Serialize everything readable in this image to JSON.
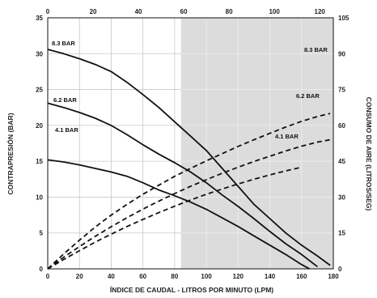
{
  "chart_data": {
    "type": "line",
    "xlabel": "ÍNDICE DE CAUDAL - LITROS POR MINUTO (LPM)",
    "ylabel": "CONTRAPRESIÓN (BAR)",
    "y2label": "CONSUMO DE AIRE (LITROS/SEG)",
    "xlim": [
      0,
      180
    ],
    "ylim": [
      0,
      35
    ],
    "x2lim": [
      0,
      126
    ],
    "y2lim": [
      0,
      105
    ],
    "x_ticks": [
      "0",
      "20",
      "40",
      "60",
      "80",
      "100",
      "120",
      "140",
      "160",
      "180"
    ],
    "y_ticks": [
      "0",
      "5",
      "10",
      "15",
      "20",
      "25",
      "30",
      "35"
    ],
    "x2_ticks": [
      "0",
      "20",
      "40",
      "60",
      "80",
      "100",
      "120"
    ],
    "y2_ticks": [
      "0",
      "15",
      "30",
      "45",
      "60",
      "75",
      "90",
      "105"
    ],
    "grid": true,
    "shaded_region_x": [
      84,
      180
    ],
    "series": [
      {
        "name": "8.3 BAR",
        "style": "solid",
        "points": [
          [
            0,
            30.6
          ],
          [
            10,
            30.0
          ],
          [
            20,
            29.3
          ],
          [
            30,
            28.5
          ],
          [
            40,
            27.5
          ],
          [
            50,
            26.0
          ],
          [
            60,
            24.3
          ],
          [
            70,
            22.5
          ],
          [
            80,
            20.5
          ],
          [
            90,
            18.5
          ],
          [
            100,
            16.5
          ],
          [
            110,
            14.0
          ],
          [
            120,
            11.5
          ],
          [
            130,
            9.0
          ],
          [
            140,
            7.0
          ],
          [
            150,
            5.0
          ],
          [
            160,
            3.3
          ],
          [
            170,
            1.8
          ],
          [
            178,
            0.5
          ]
        ]
      },
      {
        "name": "6.2 BAR",
        "style": "solid",
        "points": [
          [
            0,
            23.1
          ],
          [
            10,
            22.5
          ],
          [
            20,
            21.8
          ],
          [
            30,
            21.0
          ],
          [
            40,
            20.0
          ],
          [
            50,
            18.7
          ],
          [
            60,
            17.3
          ],
          [
            70,
            16.0
          ],
          [
            80,
            14.8
          ],
          [
            90,
            13.5
          ],
          [
            100,
            12.0
          ],
          [
            110,
            10.3
          ],
          [
            120,
            8.7
          ],
          [
            130,
            7.0
          ],
          [
            140,
            5.2
          ],
          [
            150,
            3.5
          ],
          [
            160,
            2.0
          ],
          [
            170,
            0.3
          ]
        ]
      },
      {
        "name": "4.1 BAR",
        "style": "solid",
        "points": [
          [
            0,
            15.2
          ],
          [
            10,
            14.9
          ],
          [
            20,
            14.5
          ],
          [
            30,
            14.0
          ],
          [
            40,
            13.5
          ],
          [
            50,
            12.9
          ],
          [
            60,
            12.0
          ],
          [
            70,
            11.0
          ],
          [
            80,
            10.2
          ],
          [
            90,
            9.3
          ],
          [
            100,
            8.3
          ],
          [
            110,
            7.1
          ],
          [
            120,
            5.9
          ],
          [
            130,
            4.6
          ],
          [
            140,
            3.3
          ],
          [
            150,
            2.0
          ],
          [
            160,
            0.6
          ],
          [
            165,
            0
          ]
        ]
      },
      {
        "name": "8.3 BAR",
        "style": "dashed",
        "points": [
          [
            0,
            0
          ],
          [
            10,
            6.2
          ],
          [
            20,
            12.0
          ],
          [
            30,
            17.5
          ],
          [
            40,
            22.5
          ],
          [
            50,
            27.0
          ],
          [
            60,
            31.2
          ],
          [
            70,
            35.0
          ],
          [
            80,
            38.7
          ],
          [
            90,
            42.0
          ],
          [
            100,
            45.2
          ],
          [
            110,
            48.2
          ],
          [
            120,
            51.2
          ],
          [
            130,
            54.0
          ],
          [
            140,
            56.7
          ],
          [
            150,
            59.3
          ],
          [
            160,
            61.7
          ],
          [
            170,
            63.7
          ],
          [
            178,
            65.0
          ]
        ]
      },
      {
        "name": "6.2 BAR",
        "style": "dashed",
        "points": [
          [
            0,
            0
          ],
          [
            10,
            4.8
          ],
          [
            20,
            9.3
          ],
          [
            30,
            13.6
          ],
          [
            40,
            17.6
          ],
          [
            50,
            21.4
          ],
          [
            60,
            25.0
          ],
          [
            70,
            28.3
          ],
          [
            80,
            31.5
          ],
          [
            90,
            34.5
          ],
          [
            100,
            37.3
          ],
          [
            110,
            40.0
          ],
          [
            120,
            42.5
          ],
          [
            130,
            44.9
          ],
          [
            140,
            47.1
          ],
          [
            150,
            49.3
          ],
          [
            160,
            51.3
          ],
          [
            170,
            53.0
          ],
          [
            178,
            54.0
          ]
        ]
      },
      {
        "name": "4.1 BAR",
        "style": "dashed",
        "points": [
          [
            0,
            0
          ],
          [
            10,
            3.9
          ],
          [
            20,
            7.6
          ],
          [
            30,
            11.2
          ],
          [
            40,
            14.5
          ],
          [
            50,
            17.7
          ],
          [
            60,
            20.7
          ],
          [
            70,
            23.5
          ],
          [
            80,
            26.2
          ],
          [
            90,
            28.8
          ],
          [
            100,
            31.2
          ],
          [
            110,
            33.4
          ],
          [
            120,
            35.5
          ],
          [
            130,
            37.5
          ],
          [
            140,
            39.3
          ],
          [
            150,
            41.0
          ],
          [
            160,
            42.5
          ]
        ]
      }
    ],
    "labels": {
      "solid_8": "8.3 BAR",
      "solid_6": "6.2 BAR",
      "solid_4": "4.1 BAR",
      "dashed_8": "8.3 BAR",
      "dashed_6": "6.2 BAR",
      "dashed_4": "4.1 BAR"
    }
  }
}
